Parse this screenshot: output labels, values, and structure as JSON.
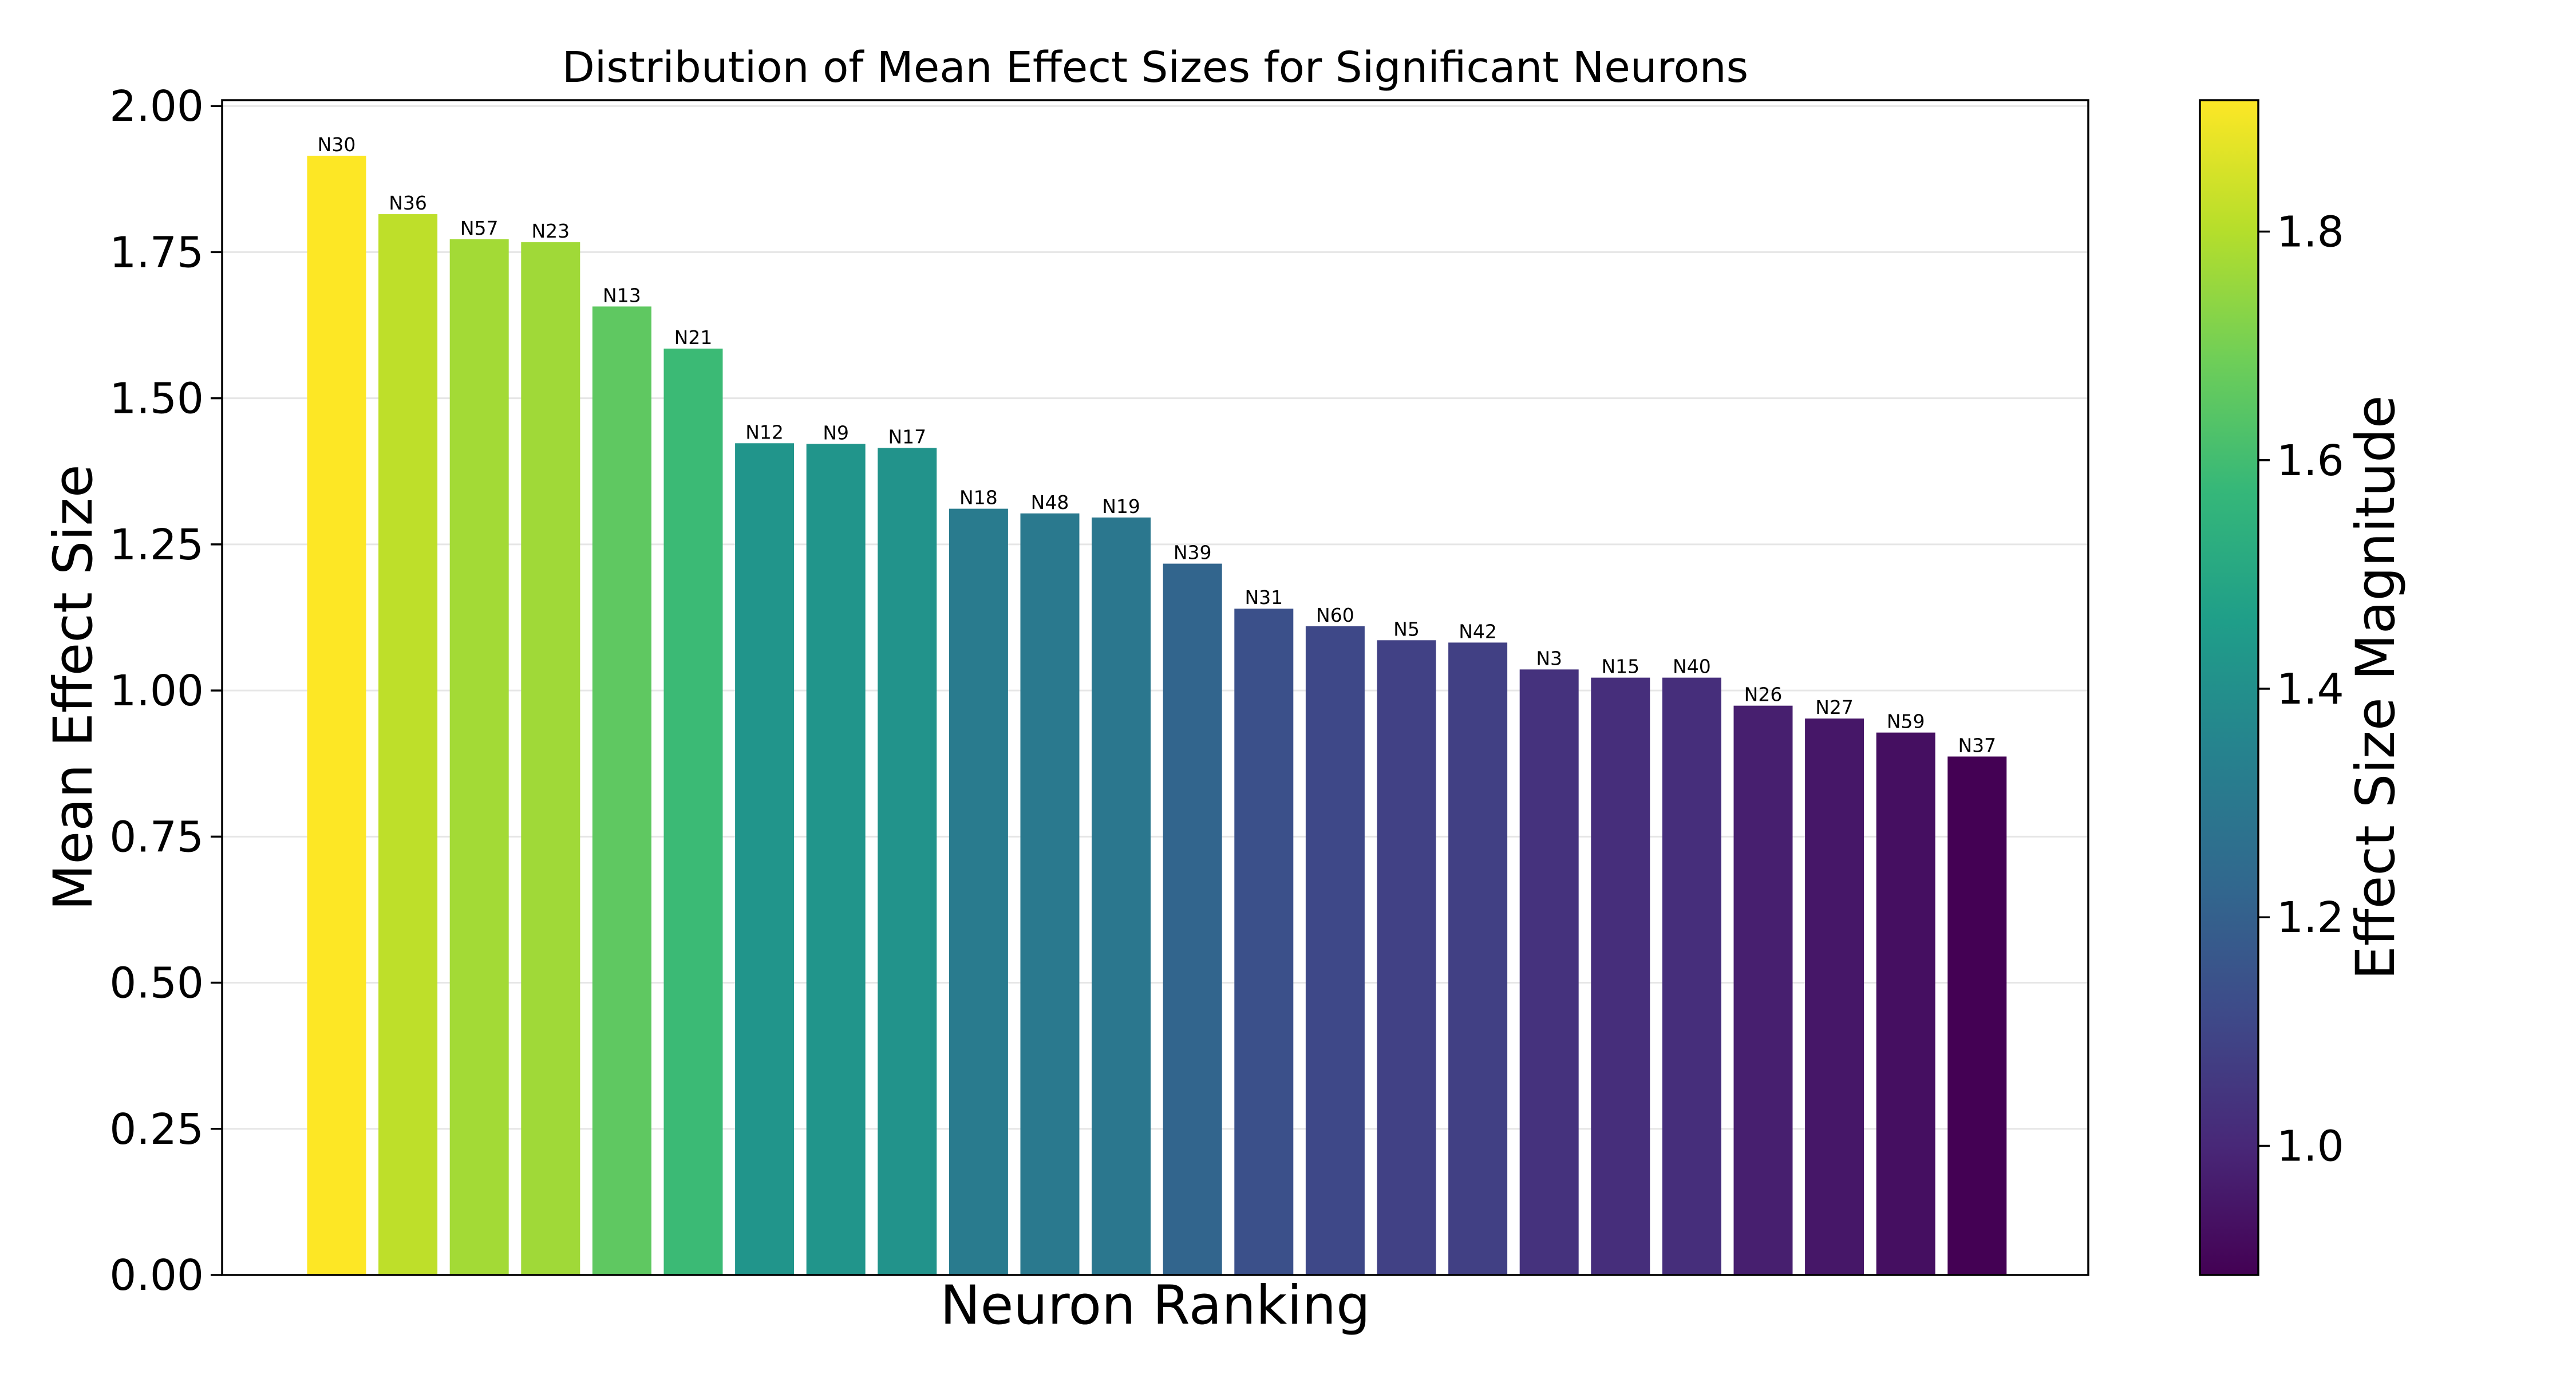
{
  "chart_data": {
    "type": "bar",
    "title": "Distribution of Mean Effect Sizes for Significant Neurons",
    "xlabel": "Neuron Ranking",
    "ylabel": "Mean Effect Size",
    "ylim": [
      0,
      2.01
    ],
    "yticks": [
      "0.00",
      "0.25",
      "0.50",
      "0.75",
      "1.00",
      "1.25",
      "1.50",
      "1.75",
      "2.00"
    ],
    "grid": "horizontal",
    "categories": [
      "N30",
      "N36",
      "N57",
      "N23",
      "N13",
      "N21",
      "N12",
      "N9",
      "N17",
      "N18",
      "N48",
      "N19",
      "N39",
      "N31",
      "N60",
      "N5",
      "N42",
      "N3",
      "N15",
      "N40",
      "N26",
      "N27",
      "N59",
      "N37"
    ],
    "values": [
      1.915,
      1.815,
      1.772,
      1.767,
      1.657,
      1.585,
      1.423,
      1.422,
      1.415,
      1.311,
      1.303,
      1.296,
      1.217,
      1.14,
      1.11,
      1.086,
      1.082,
      1.036,
      1.022,
      1.022,
      0.974,
      0.952,
      0.928,
      0.887
    ],
    "colormap": "viridis",
    "colorbar": {
      "label": "Effect Size Magnitude",
      "range": [
        0.887,
        1.915
      ],
      "ticks": [
        "1.0",
        "1.2",
        "1.4",
        "1.6",
        "1.8"
      ],
      "tick_values": [
        1.0,
        1.2,
        1.4,
        1.6,
        1.8
      ]
    }
  }
}
